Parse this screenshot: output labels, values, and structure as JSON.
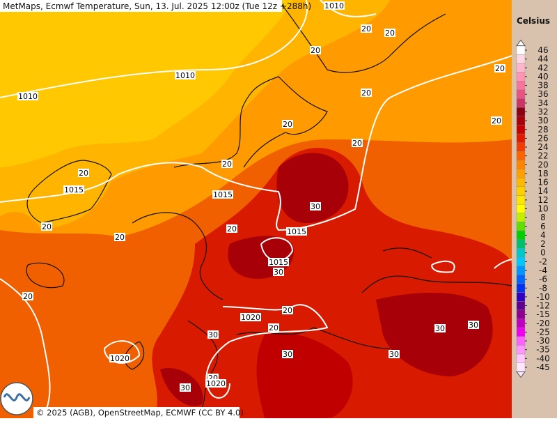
{
  "header": {
    "title": "MetMaps, Ecmwf Temperature, Sun, 13. Jul. 2025 12:00z (Tue 12z +288h)"
  },
  "footer": {
    "copyright": "© 2025 (AGB), OpenStreetMap, ECMWF (CC BY 4.0)"
  },
  "legend": {
    "unit": "Celsius",
    "levels": [
      {
        "label": "46",
        "color": "#ffffff"
      },
      {
        "label": "44",
        "color": "#ffd6e4"
      },
      {
        "label": "42",
        "color": "#ffb6cc"
      },
      {
        "label": "40",
        "color": "#ff94b4"
      },
      {
        "label": "38",
        "color": "#f8749c"
      },
      {
        "label": "36",
        "color": "#e85484"
      },
      {
        "label": "34",
        "color": "#cc3466"
      },
      {
        "label": "32",
        "color": "#8c0014"
      },
      {
        "label": "30",
        "color": "#a80008"
      },
      {
        "label": "28",
        "color": "#c40000"
      },
      {
        "label": "26",
        "color": "#e01800"
      },
      {
        "label": "24",
        "color": "#f23c00"
      },
      {
        "label": "22",
        "color": "#fc6400"
      },
      {
        "label": "20",
        "color": "#ff8400"
      },
      {
        "label": "18",
        "color": "#ffa000"
      },
      {
        "label": "16",
        "color": "#ffb800"
      },
      {
        "label": "14",
        "color": "#ffd000"
      },
      {
        "label": "12",
        "color": "#ffe600"
      },
      {
        "label": "10",
        "color": "#ffff00"
      },
      {
        "label": "8",
        "color": "#c0f000"
      },
      {
        "label": "6",
        "color": "#60e000"
      },
      {
        "label": "4",
        "color": "#00d000"
      },
      {
        "label": "2",
        "color": "#00c070"
      },
      {
        "label": "0",
        "color": "#00c8c8"
      },
      {
        "label": "-2",
        "color": "#00c8ff"
      },
      {
        "label": "-4",
        "color": "#0096ff"
      },
      {
        "label": "-6",
        "color": "#0064ff"
      },
      {
        "label": "-8",
        "color": "#0032f0"
      },
      {
        "label": "-10",
        "color": "#3000c0"
      },
      {
        "label": "-12",
        "color": "#600090"
      },
      {
        "label": "-15",
        "color": "#900090"
      },
      {
        "label": "-20",
        "color": "#c000c0"
      },
      {
        "label": "-25",
        "color": "#f000f0"
      },
      {
        "label": "-30",
        "color": "#ff60ff"
      },
      {
        "label": "-35",
        "color": "#ff96ff"
      },
      {
        "label": "-40",
        "color": "#ffc8ff"
      },
      {
        "label": "-45",
        "color": "#ffe8ff"
      }
    ]
  },
  "contour_labels": [
    "1010",
    "20",
    "20",
    "20",
    "20",
    "1010",
    "1010",
    "20",
    "20",
    "20",
    "20",
    "20",
    "20",
    "1015",
    "1015",
    "30",
    "20",
    "20",
    "20",
    "1015",
    "1015",
    "30",
    "20",
    "20",
    "1020",
    "30",
    "30",
    "20",
    "30",
    "30",
    "1020",
    "30",
    "20",
    "1020",
    "30"
  ]
}
